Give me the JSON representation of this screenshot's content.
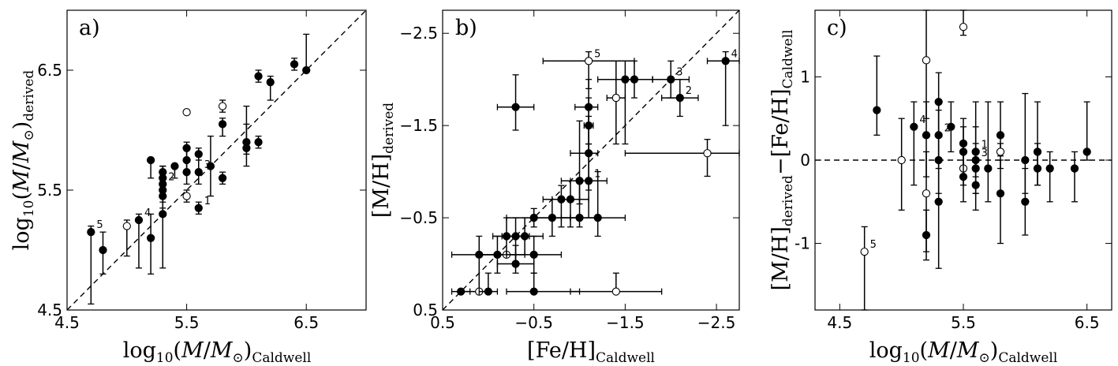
{
  "chart_data": [
    {
      "type": "scatter",
      "panel": "a)",
      "xlabel": "log10(M/M_sun)_Caldwell",
      "ylabel": "log10(M/M_sun)_derived",
      "xlim": [
        4.5,
        7.0
      ],
      "ylim": [
        4.5,
        7.0
      ],
      "xticks": [
        4.5,
        5.5,
        6.5
      ],
      "yticks": [
        4.5,
        5.5,
        6.5
      ],
      "xtick_labels": [
        "4.5",
        "5.5",
        "6.5"
      ],
      "ytick_labels": [
        "4.5",
        "5.5",
        "6.5"
      ],
      "reference_line": "y = x (dashed)",
      "points": [
        {
          "x": 4.7,
          "y": 5.15,
          "ylo": 4.55,
          "yhi": 5.2,
          "open": false,
          "label": "5"
        },
        {
          "x": 4.8,
          "y": 5.0,
          "ylo": 4.8,
          "yhi": 5.15,
          "open": false
        },
        {
          "x": 5.0,
          "y": 5.2,
          "ylo": 4.95,
          "yhi": 5.25,
          "open": true
        },
        {
          "x": 5.1,
          "y": 5.25,
          "ylo": 4.85,
          "yhi": 5.3,
          "open": false,
          "label": "4"
        },
        {
          "x": 5.2,
          "y": 5.1,
          "ylo": 4.8,
          "yhi": 5.3,
          "open": false
        },
        {
          "x": 5.2,
          "y": 5.75,
          "ylo": 5.6,
          "yhi": 5.75,
          "open": false
        },
        {
          "x": 5.3,
          "y": 5.3,
          "ylo": 4.85,
          "yhi": 5.7,
          "open": false
        },
        {
          "x": 5.3,
          "y": 5.45,
          "ylo": 5.3,
          "yhi": 5.65,
          "open": false
        },
        {
          "x": 5.3,
          "y": 5.5,
          "ylo": 5.35,
          "yhi": 5.65,
          "open": false
        },
        {
          "x": 5.3,
          "y": 5.55,
          "ylo": 5.4,
          "yhi": 5.65,
          "open": false,
          "label": "2"
        },
        {
          "x": 5.3,
          "y": 5.6,
          "ylo": 5.45,
          "yhi": 5.7,
          "open": false
        },
        {
          "x": 5.3,
          "y": 5.65,
          "ylo": 5.5,
          "yhi": 5.7,
          "open": false
        },
        {
          "x": 5.4,
          "y": 5.7,
          "ylo": 5.6,
          "yhi": 5.7,
          "open": false
        },
        {
          "x": 5.5,
          "y": 5.45,
          "ylo": 5.4,
          "yhi": 5.5,
          "open": true
        },
        {
          "x": 5.5,
          "y": 5.65,
          "ylo": 5.55,
          "yhi": 5.75,
          "open": false
        },
        {
          "x": 5.5,
          "y": 5.75,
          "ylo": 5.65,
          "yhi": 5.85,
          "open": false
        },
        {
          "x": 5.5,
          "y": 5.85,
          "ylo": 5.75,
          "yhi": 5.9,
          "open": false
        },
        {
          "x": 5.5,
          "y": 6.15,
          "ylo": 6.15,
          "yhi": 6.15,
          "open": true
        },
        {
          "x": 5.6,
          "y": 5.35,
          "ylo": 5.3,
          "yhi": 5.4,
          "open": false,
          "label": "1"
        },
        {
          "x": 5.6,
          "y": 5.65,
          "ylo": 5.55,
          "yhi": 5.75,
          "open": false,
          "label": "3"
        },
        {
          "x": 5.6,
          "y": 5.8,
          "ylo": 5.65,
          "yhi": 5.85,
          "open": false
        },
        {
          "x": 5.7,
          "y": 5.7,
          "ylo": 5.45,
          "yhi": 5.95,
          "open": false
        },
        {
          "x": 5.8,
          "y": 5.6,
          "ylo": 5.55,
          "yhi": 5.65,
          "open": false
        },
        {
          "x": 5.8,
          "y": 6.05,
          "ylo": 5.95,
          "yhi": 6.1,
          "open": false
        },
        {
          "x": 5.8,
          "y": 6.2,
          "ylo": 6.15,
          "yhi": 6.25,
          "open": true
        },
        {
          "x": 6.0,
          "y": 5.85,
          "ylo": 5.7,
          "yhi": 6.2,
          "open": false
        },
        {
          "x": 6.0,
          "y": 5.9,
          "ylo": 5.8,
          "yhi": 6.05,
          "open": false
        },
        {
          "x": 6.1,
          "y": 5.9,
          "ylo": 5.85,
          "yhi": 5.95,
          "open": false
        },
        {
          "x": 6.1,
          "y": 6.45,
          "ylo": 6.4,
          "yhi": 6.5,
          "open": false
        },
        {
          "x": 6.2,
          "y": 6.4,
          "ylo": 6.25,
          "yhi": 6.45,
          "open": false
        },
        {
          "x": 6.4,
          "y": 6.55,
          "ylo": 6.5,
          "yhi": 6.6,
          "open": false
        },
        {
          "x": 6.5,
          "y": 6.5,
          "ylo": 6.5,
          "yhi": 6.8,
          "open": false
        }
      ]
    },
    {
      "type": "scatter",
      "panel": "b)",
      "xlabel": "[Fe/H]_Caldwell",
      "ylabel": "[M/H]_derived",
      "xlim": [
        0.5,
        -2.75
      ],
      "ylim": [
        0.5,
        -2.75
      ],
      "xticks": [
        0.5,
        -0.5,
        -1.5,
        -2.5
      ],
      "yticks": [
        0.5,
        -0.5,
        -1.5,
        -2.5
      ],
      "xtick_labels": [
        "0.5",
        "−0.5",
        "−1.5",
        "−2.5"
      ],
      "ytick_labels": [
        "0.5",
        "−0.5",
        "−1.5",
        "−2.5"
      ],
      "reference_line": "y = x (dashed)",
      "points": [
        {
          "x": 0.3,
          "y": 0.3,
          "xlo": 0.2,
          "xhi": 0.4,
          "open": false
        },
        {
          "x": 0.1,
          "y": -0.1,
          "xlo": -0.2,
          "xhi": 0.4,
          "ylo": -0.3,
          "yhi": 0.3,
          "open": false
        },
        {
          "x": 0.1,
          "y": 0.3,
          "xlo": 0.0,
          "xhi": 0.3,
          "open": true
        },
        {
          "x": 0.0,
          "y": 0.3,
          "xlo": -0.1,
          "xhi": 0.1,
          "ylo": 0.1,
          "yhi": 0.3,
          "open": false
        },
        {
          "x": -0.1,
          "y": -0.1,
          "xlo": -0.3,
          "xhi": 0.1,
          "ylo": -0.3,
          "yhi": 0.1,
          "open": false
        },
        {
          "x": -0.2,
          "y": -0.1,
          "xlo": -0.4,
          "xhi": 0.1,
          "open": true
        },
        {
          "x": -0.2,
          "y": -0.3,
          "xlo": -0.4,
          "xhi": -0.05,
          "ylo": -0.5,
          "yhi": -0.1,
          "open": false
        },
        {
          "x": -0.3,
          "y": -0.3,
          "xlo": -0.45,
          "xhi": -0.15,
          "ylo": -0.5,
          "yhi": 0.0,
          "open": false
        },
        {
          "x": -0.3,
          "y": 0.0,
          "xlo": -0.5,
          "xhi": -0.1,
          "ylo": -0.2,
          "yhi": 0.1,
          "open": false
        },
        {
          "x": -0.3,
          "y": -1.7,
          "xlo": -0.5,
          "xhi": -0.1,
          "ylo": -2.05,
          "yhi": -1.45,
          "open": false
        },
        {
          "x": -0.4,
          "y": -0.3,
          "xlo": -0.6,
          "xhi": -0.2,
          "ylo": -0.5,
          "yhi": -0.1,
          "open": false
        },
        {
          "x": -0.5,
          "y": -0.5,
          "xlo": -0.9,
          "xhi": -0.2,
          "ylo": -0.6,
          "yhi": -0.4,
          "open": false
        },
        {
          "x": -0.5,
          "y": -0.1,
          "xlo": -0.8,
          "xhi": -0.2,
          "ylo": -0.3,
          "yhi": 0.1,
          "open": false
        },
        {
          "x": -0.5,
          "y": 0.3,
          "xlo": -1.0,
          "xhi": -0.2,
          "ylo": 0.1,
          "yhi": 0.3,
          "open": false
        },
        {
          "x": -0.7,
          "y": -0.5,
          "xlo": -1.0,
          "xhi": -0.5,
          "ylo": -0.7,
          "yhi": -0.3,
          "open": false
        },
        {
          "x": -0.8,
          "y": -0.7,
          "xlo": -1.0,
          "xhi": -0.6,
          "ylo": -0.85,
          "yhi": -0.4,
          "open": false
        },
        {
          "x": -0.9,
          "y": -0.7,
          "xlo": -1.1,
          "xhi": -0.7,
          "ylo": -0.9,
          "yhi": -0.4,
          "open": false
        },
        {
          "x": -1.0,
          "y": -0.5,
          "xlo": -1.2,
          "xhi": -0.8,
          "ylo": -0.9,
          "yhi": -0.4,
          "open": false
        },
        {
          "x": -1.0,
          "y": -0.9,
          "xlo": -1.1,
          "xhi": -0.8,
          "ylo": -1.55,
          "yhi": -0.65,
          "open": false
        },
        {
          "x": -1.1,
          "y": -0.9,
          "xlo": -1.3,
          "xhi": -0.9,
          "ylo": -1.3,
          "yhi": -0.5,
          "open": false,
          "label": "1"
        },
        {
          "x": -1.1,
          "y": -1.2,
          "xlo": -1.2,
          "xhi": -0.9,
          "ylo": -1.6,
          "yhi": -0.8,
          "open": false
        },
        {
          "x": -1.1,
          "y": -1.7,
          "xlo": -1.2,
          "xhi": -0.95,
          "ylo": -2.0,
          "yhi": -1.3,
          "open": false
        },
        {
          "x": -1.1,
          "y": -1.5,
          "xlo": -1.15,
          "xhi": -1.05,
          "ylo": -1.8,
          "yhi": -1.2,
          "open": false
        },
        {
          "x": -1.2,
          "y": -0.5,
          "xlo": -1.5,
          "xhi": -0.9,
          "ylo": -1.0,
          "yhi": -0.3,
          "open": false
        },
        {
          "x": -1.1,
          "y": -2.2,
          "xlo": -1.6,
          "xhi": -0.6,
          "ylo": -2.3,
          "yhi": -1.9,
          "open": true,
          "label": "5"
        },
        {
          "x": -1.4,
          "y": -1.8,
          "xlo": -1.5,
          "xhi": -1.3,
          "ylo": -2.2,
          "yhi": -1.3,
          "open": true
        },
        {
          "x": -1.4,
          "y": 0.3,
          "xlo": -1.9,
          "xhi": -0.9,
          "ylo": 0.1,
          "yhi": 0.3,
          "open": true
        },
        {
          "x": -1.5,
          "y": -2.0,
          "xlo": -1.8,
          "xhi": -1.2,
          "ylo": -2.2,
          "yhi": -1.3,
          "open": false
        },
        {
          "x": -1.6,
          "y": -2.0,
          "xlo": -1.8,
          "xhi": -1.4,
          "ylo": -2.2,
          "yhi": -1.8,
          "open": false
        },
        {
          "x": -2.0,
          "y": -2.0,
          "xlo": -2.2,
          "xhi": -1.8,
          "ylo": -2.2,
          "yhi": -1.8,
          "open": false,
          "label": "3"
        },
        {
          "x": -2.1,
          "y": -1.8,
          "xlo": -2.3,
          "xhi": -1.9,
          "ylo": -2.0,
          "yhi": -1.6,
          "open": false,
          "label": "2"
        },
        {
          "x": -2.4,
          "y": -1.2,
          "xlo": -2.75,
          "xhi": -1.5,
          "ylo": -1.35,
          "yhi": -0.95,
          "open": true
        },
        {
          "x": -2.6,
          "y": -2.2,
          "xlo": -2.75,
          "xhi": -2.4,
          "ylo": -2.3,
          "yhi": -1.5,
          "open": false,
          "label": "4"
        }
      ]
    },
    {
      "type": "scatter",
      "panel": "c)",
      "xlabel": "log10(M/M_sun)_Caldwell",
      "ylabel": "[M/H]_derived − [Fe/H]_Caldwell",
      "xlim": [
        4.3,
        6.7
      ],
      "ylim": [
        -1.8,
        1.8
      ],
      "xticks": [
        4.5,
        5.5,
        6.5
      ],
      "yticks": [
        -1.0,
        0.0,
        1.0
      ],
      "xtick_labels": [
        "4.5",
        "5.5",
        "6.5"
      ],
      "ytick_labels": [
        "-1",
        "0",
        "1"
      ],
      "reference_line": "y = 0 (dashed)",
      "points": [
        {
          "x": 4.7,
          "y": -1.1,
          "ylo": -1.8,
          "yhi": -0.8,
          "open": true,
          "label": "5"
        },
        {
          "x": 4.8,
          "y": 0.6,
          "ylo": 0.3,
          "yhi": 1.25,
          "open": false
        },
        {
          "x": 5.0,
          "y": 0.0,
          "ylo": -0.6,
          "yhi": 0.5,
          "open": true
        },
        {
          "x": 5.1,
          "y": 0.4,
          "ylo": -0.3,
          "yhi": 0.7,
          "open": false,
          "label": "4"
        },
        {
          "x": 5.2,
          "y": 1.2,
          "ylo": 0.5,
          "yhi": 1.8,
          "open": true
        },
        {
          "x": 5.2,
          "y": 0.3,
          "ylo": -0.2,
          "yhi": 0.7,
          "open": false
        },
        {
          "x": 5.2,
          "y": -0.4,
          "ylo": -1.1,
          "yhi": 0.1,
          "open": true
        },
        {
          "x": 5.2,
          "y": -0.9,
          "ylo": -1.2,
          "yhi": -0.6,
          "open": false
        },
        {
          "x": 5.3,
          "y": 0.7,
          "ylo": 0.3,
          "yhi": 1.05,
          "open": false
        },
        {
          "x": 5.3,
          "y": 0.3,
          "ylo": -0.1,
          "yhi": 0.7,
          "open": false,
          "label": "2"
        },
        {
          "x": 5.3,
          "y": 0.0,
          "ylo": -0.4,
          "yhi": 0.6,
          "open": false
        },
        {
          "x": 5.3,
          "y": -0.5,
          "ylo": -1.3,
          "yhi": 0.3,
          "open": false
        },
        {
          "x": 5.4,
          "y": 0.4,
          "ylo": 0.1,
          "yhi": 0.7,
          "open": false
        },
        {
          "x": 5.5,
          "y": 1.6,
          "ylo": 1.5,
          "yhi": 1.8,
          "open": true
        },
        {
          "x": 5.5,
          "y": 0.2,
          "ylo": -0.2,
          "yhi": 0.5,
          "open": false
        },
        {
          "x": 5.5,
          "y": 0.1,
          "ylo": -0.2,
          "yhi": 0.4,
          "open": false
        },
        {
          "x": 5.5,
          "y": -0.1,
          "ylo": -0.3,
          "yhi": 0.1,
          "open": true
        },
        {
          "x": 5.5,
          "y": -0.2,
          "ylo": -0.5,
          "yhi": 0.1,
          "open": false
        },
        {
          "x": 5.6,
          "y": 0.1,
          "ylo": -0.2,
          "yhi": 0.7,
          "open": false,
          "label": "1"
        },
        {
          "x": 5.6,
          "y": 0.0,
          "ylo": -0.4,
          "yhi": 0.4,
          "open": false,
          "label": "3"
        },
        {
          "x": 5.6,
          "y": -0.1,
          "ylo": -0.4,
          "yhi": 0.2,
          "open": false
        },
        {
          "x": 5.6,
          "y": -0.3,
          "ylo": -0.6,
          "yhi": 0.1,
          "open": false
        },
        {
          "x": 5.7,
          "y": -0.1,
          "ylo": -0.5,
          "yhi": 0.7,
          "open": false
        },
        {
          "x": 5.8,
          "y": 0.3,
          "ylo": -0.1,
          "yhi": 0.7,
          "open": false
        },
        {
          "x": 5.8,
          "y": 0.1,
          "ylo": 0.05,
          "yhi": 0.2,
          "open": true
        },
        {
          "x": 5.8,
          "y": -0.4,
          "ylo": -1.0,
          "yhi": 0.0,
          "open": false
        },
        {
          "x": 6.0,
          "y": 0.0,
          "ylo": -0.4,
          "yhi": 0.8,
          "open": false
        },
        {
          "x": 6.0,
          "y": -0.5,
          "ylo": -0.9,
          "yhi": -0.1,
          "open": false
        },
        {
          "x": 6.1,
          "y": 0.1,
          "ylo": -0.3,
          "yhi": 0.7,
          "open": false
        },
        {
          "x": 6.1,
          "y": -0.1,
          "ylo": -0.3,
          "yhi": 0.2,
          "open": false
        },
        {
          "x": 6.2,
          "y": -0.1,
          "ylo": -0.5,
          "yhi": 0.1,
          "open": false
        },
        {
          "x": 6.4,
          "y": -0.1,
          "ylo": -0.5,
          "yhi": 0.1,
          "open": false
        },
        {
          "x": 6.5,
          "y": 0.1,
          "ylo": 0.0,
          "yhi": 0.7,
          "open": false
        }
      ]
    }
  ]
}
